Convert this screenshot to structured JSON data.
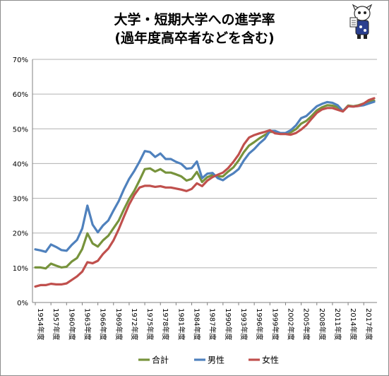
{
  "title": {
    "line1": "大学・短期大学への進学率",
    "line2": "(過年度高卒者などを含む)"
  },
  "chart_data": {
    "type": "line",
    "x": [
      1954,
      1955,
      1956,
      1957,
      1958,
      1959,
      1960,
      1961,
      1962,
      1963,
      1964,
      1965,
      1966,
      1967,
      1968,
      1969,
      1970,
      1971,
      1972,
      1973,
      1974,
      1975,
      1976,
      1977,
      1978,
      1979,
      1980,
      1981,
      1982,
      1983,
      1984,
      1985,
      1986,
      1987,
      1988,
      1989,
      1990,
      1991,
      1992,
      1993,
      1994,
      1995,
      1996,
      1997,
      1998,
      1999,
      2000,
      2001,
      2002,
      2003,
      2004,
      2005,
      2006,
      2007,
      2008,
      2009,
      2010,
      2011,
      2012,
      2013,
      2014,
      2015,
      2016,
      2017,
      2018,
      2019
    ],
    "x_tick_labels": [
      "1954年度",
      "1957年度",
      "1960年度",
      "1963年度",
      "1966年度",
      "1969年度",
      "1972年度",
      "1975年度",
      "1978年度",
      "1981年度",
      "1984年度",
      "1987年度",
      "1990年度",
      "1993年度",
      "1996年度",
      "1999年度",
      "2002年度",
      "2005年度",
      "2008年度",
      "2011年度",
      "2014年度",
      "2017年度"
    ],
    "x_tick_values": [
      1954,
      1957,
      1960,
      1963,
      1966,
      1969,
      1972,
      1975,
      1978,
      1981,
      1984,
      1987,
      1990,
      1993,
      1996,
      1999,
      2002,
      2005,
      2008,
      2011,
      2014,
      2017
    ],
    "y_tick_labels": [
      "0%",
      "10%",
      "20%",
      "30%",
      "40%",
      "50%",
      "60%",
      "70%"
    ],
    "ylim": [
      0,
      70
    ],
    "series": [
      {
        "name": "合計",
        "color": "#77933c",
        "values": [
          10.1,
          10.1,
          9.8,
          11.2,
          10.6,
          10.1,
          10.3,
          11.8,
          12.8,
          15.4,
          19.9,
          17.0,
          16.1,
          17.9,
          19.2,
          21.4,
          23.6,
          26.8,
          29.8,
          32.2,
          35.2,
          38.4,
          38.6,
          37.7,
          38.4,
          37.4,
          37.4,
          36.9,
          36.3,
          35.1,
          35.6,
          37.6,
          34.7,
          36.1,
          36.7,
          36.3,
          36.3,
          37.7,
          38.9,
          40.9,
          43.3,
          45.2,
          46.2,
          47.3,
          48.2,
          49.1,
          49.1,
          48.6,
          48.6,
          49.0,
          49.9,
          51.5,
          52.3,
          53.7,
          55.3,
          56.2,
          56.8,
          56.7,
          56.2,
          55.1,
          56.7,
          56.5,
          56.8,
          57.3,
          57.9,
          58.1
        ]
      },
      {
        "name": "男性",
        "color": "#4f81bd",
        "values": [
          15.3,
          15.0,
          14.6,
          16.7,
          16.0,
          15.1,
          14.9,
          16.6,
          18.0,
          21.3,
          27.9,
          22.4,
          20.2,
          22.2,
          23.6,
          26.5,
          29.2,
          32.6,
          35.6,
          37.9,
          40.6,
          43.6,
          43.3,
          41.9,
          42.9,
          41.3,
          41.3,
          40.5,
          39.9,
          38.5,
          38.7,
          40.6,
          35.8,
          37.1,
          37.3,
          35.8,
          35.2,
          36.3,
          37.2,
          38.4,
          40.9,
          42.9,
          44.2,
          45.8,
          47.1,
          49.4,
          49.4,
          48.8,
          48.8,
          49.6,
          51.0,
          53.1,
          53.7,
          55.1,
          56.5,
          57.2,
          57.7,
          57.5,
          56.8,
          55.1,
          56.5,
          56.4,
          56.6,
          56.8,
          57.3,
          57.8
        ]
      },
      {
        "name": "女性",
        "color": "#c0504d",
        "values": [
          4.6,
          5.0,
          5.0,
          5.4,
          5.2,
          5.2,
          5.5,
          6.5,
          7.5,
          8.9,
          11.6,
          11.3,
          12.0,
          14.0,
          15.5,
          17.9,
          21.1,
          24.7,
          28.2,
          31.0,
          33.1,
          33.6,
          33.6,
          33.3,
          33.5,
          33.1,
          33.1,
          32.8,
          32.5,
          32.1,
          32.7,
          34.3,
          33.5,
          35.1,
          36.1,
          36.8,
          37.4,
          38.7,
          40.5,
          42.6,
          45.5,
          47.5,
          48.2,
          48.7,
          49.1,
          49.6,
          48.7,
          48.5,
          48.5,
          48.3,
          48.8,
          49.8,
          51.1,
          52.9,
          54.6,
          55.6,
          56.0,
          56.0,
          55.5,
          55.0,
          56.5,
          56.4,
          56.6,
          57.3,
          58.3,
          58.8
        ]
      }
    ],
    "legend_position": "bottom"
  }
}
